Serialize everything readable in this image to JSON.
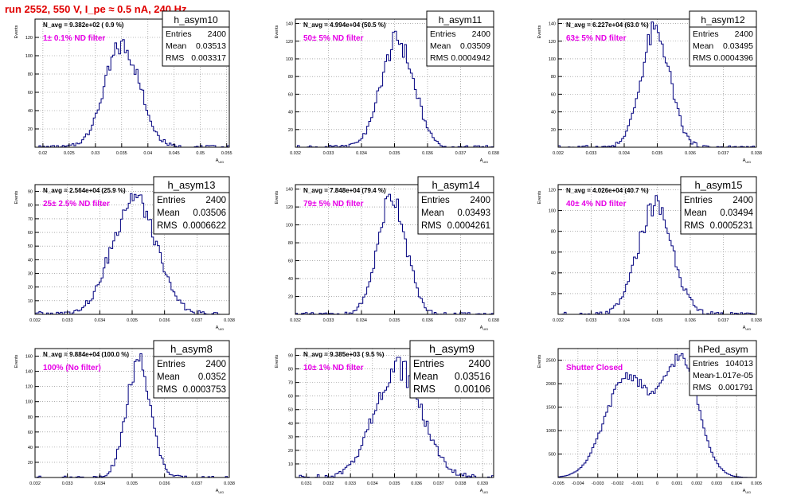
{
  "header": {
    "run_title": "run 2552,   550 V, I_pe ≈ 0.5 nA, 240 Hz"
  },
  "colors": {
    "histogram_line": "#00007f",
    "filter_label": "#e600e6",
    "title_text": "#e00000",
    "axes": "#000000",
    "grid": "#808080"
  },
  "stats_labels": {
    "entries": "Entries",
    "mean": "Mean",
    "rms": "RMS"
  },
  "axis_labels": {
    "x": "A_UID",
    "y": "Events"
  },
  "chart_data": [
    {
      "type": "bar",
      "name": "h_asym10",
      "navg_label": "N_avg = 9.382e+02 ( 0.9 %)",
      "filter_label": "1± 0.1% ND filter",
      "stats": {
        "entries": "2400",
        "mean": "0.03513",
        "rms": "0.003317"
      },
      "xlim": [
        0.0185,
        0.0555
      ],
      "ylim": [
        0,
        140
      ],
      "xticks": [
        0.02,
        0.025,
        0.03,
        0.035,
        0.04,
        0.045,
        0.05,
        0.055
      ],
      "xticklabels": [
        "0.02",
        "0.025",
        "0.03",
        "0.035",
        "0.04",
        "0.045",
        "0.05",
        "0.055"
      ],
      "yticks": [
        20,
        40,
        60,
        80,
        100,
        120
      ],
      "yticklabels": [
        "20",
        "40",
        "60",
        "80",
        "100",
        "120"
      ],
      "mu": 0.03513,
      "sigma": 0.003317,
      "peak": 112,
      "grid": true,
      "stats_box": "top-right",
      "stats_font": "small"
    },
    {
      "type": "bar",
      "name": "h_asym11",
      "navg_label": "N_avg = 4.994e+04 (50.5 %)",
      "filter_label": "50± 5% ND filter",
      "stats": {
        "entries": "2400",
        "mean": "0.03509",
        "rms": "0.0004942"
      },
      "xlim": [
        0.032,
        0.038
      ],
      "ylim": [
        0,
        145
      ],
      "xticks": [
        0.032,
        0.033,
        0.034,
        0.035,
        0.036,
        0.037,
        0.038
      ],
      "xticklabels": [
        "0.032",
        "0.033",
        "0.034",
        "0.035",
        "0.036",
        "0.037",
        "0.038"
      ],
      "yticks": [
        20,
        40,
        60,
        80,
        100,
        120,
        140
      ],
      "yticklabels": [
        "20",
        "40",
        "60",
        "80",
        "100",
        "120",
        "140"
      ],
      "mu": 0.03509,
      "sigma": 0.0004942,
      "peak": 120,
      "grid": true,
      "stats_box": "top-right",
      "stats_font": "small"
    },
    {
      "type": "bar",
      "name": "h_asym12",
      "navg_label": "N_avg = 6.227e+04 (63.0 %)",
      "filter_label": "63± 5% ND filter",
      "stats": {
        "entries": "2400",
        "mean": "0.03495",
        "rms": "0.0004396"
      },
      "xlim": [
        0.032,
        0.038
      ],
      "ylim": [
        0,
        145
      ],
      "xticks": [
        0.032,
        0.033,
        0.034,
        0.035,
        0.036,
        0.037,
        0.038
      ],
      "xticklabels": [
        "0.032",
        "0.033",
        "0.034",
        "0.035",
        "0.036",
        "0.037",
        "0.038"
      ],
      "yticks": [
        20,
        40,
        60,
        80,
        100,
        120,
        140
      ],
      "yticklabels": [
        "20",
        "40",
        "60",
        "80",
        "100",
        "120",
        "140"
      ],
      "mu": 0.03495,
      "sigma": 0.0004396,
      "peak": 130,
      "grid": true,
      "stats_box": "top-right",
      "stats_font": "small"
    },
    {
      "type": "bar",
      "name": "h_asym13",
      "navg_label": "N_avg = 2.564e+04 (25.9 %)",
      "filter_label": "25± 2.5% ND filter",
      "stats": {
        "entries": "2400",
        "mean": "0.03506",
        "rms": "0.0006622"
      },
      "xlim": [
        0.032,
        0.038
      ],
      "ylim": [
        0,
        95
      ],
      "xticks": [
        0.032,
        0.033,
        0.034,
        0.035,
        0.036,
        0.037,
        0.038
      ],
      "xticklabels": [
        "0.032",
        "0.033",
        "0.034",
        "0.035",
        "0.036",
        "0.037",
        "0.038"
      ],
      "yticks": [
        10,
        20,
        30,
        40,
        50,
        60,
        70,
        80,
        90
      ],
      "yticklabels": [
        "10",
        "20",
        "30",
        "40",
        "50",
        "60",
        "70",
        "80",
        "90"
      ],
      "mu": 0.03506,
      "sigma": 0.0006622,
      "peak": 86,
      "grid": true,
      "stats_box": "top-right",
      "stats_font": "large"
    },
    {
      "type": "bar",
      "name": "h_asym14",
      "navg_label": "N_avg = 7.848e+04 (79.4 %)",
      "filter_label": "79± 5% ND filter",
      "stats": {
        "entries": "2400",
        "mean": "0.03493",
        "rms": "0.0004261"
      },
      "xlim": [
        0.032,
        0.038
      ],
      "ylim": [
        0,
        145
      ],
      "xticks": [
        0.032,
        0.033,
        0.034,
        0.035,
        0.036,
        0.037,
        0.038
      ],
      "xticklabels": [
        "0.032",
        "0.033",
        "0.034",
        "0.035",
        "0.036",
        "0.037",
        "0.038"
      ],
      "yticks": [
        20,
        40,
        60,
        80,
        100,
        120,
        140
      ],
      "yticklabels": [
        "20",
        "40",
        "60",
        "80",
        "100",
        "120",
        "140"
      ],
      "mu": 0.03493,
      "sigma": 0.0004261,
      "peak": 132,
      "grid": true,
      "stats_box": "top-right",
      "stats_font": "large"
    },
    {
      "type": "bar",
      "name": "h_asym15",
      "navg_label": "N_avg = 4.026e+04 (40.7 %)",
      "filter_label": "40± 4% ND filter",
      "stats": {
        "entries": "2400",
        "mean": "0.03494",
        "rms": "0.0005231"
      },
      "xlim": [
        0.032,
        0.038
      ],
      "ylim": [
        0,
        125
      ],
      "xticks": [
        0.032,
        0.033,
        0.034,
        0.035,
        0.036,
        0.037,
        0.038
      ],
      "xticklabels": [
        "0.032",
        "0.033",
        "0.034",
        "0.035",
        "0.036",
        "0.037",
        "0.038"
      ],
      "yticks": [
        20,
        40,
        60,
        80,
        100,
        120
      ],
      "yticklabels": [
        "20",
        "40",
        "60",
        "80",
        "100",
        "120"
      ],
      "mu": 0.03494,
      "sigma": 0.0005231,
      "peak": 105,
      "grid": true,
      "stats_box": "top-right",
      "stats_font": "large"
    },
    {
      "type": "bar",
      "name": "h_asym8",
      "navg_label": "N_avg = 9.884e+04 (100.0 %)",
      "filter_label": "100% (No filter)",
      "stats": {
        "entries": "2400",
        "mean": "0.0352",
        "rms": "0.0003753"
      },
      "xlim": [
        0.032,
        0.038
      ],
      "ylim": [
        0,
        170
      ],
      "xticks": [
        0.032,
        0.033,
        0.034,
        0.035,
        0.036,
        0.037,
        0.038
      ],
      "xticklabels": [
        "0.032",
        "0.033",
        "0.034",
        "0.035",
        "0.036",
        "0.037",
        "0.038"
      ],
      "yticks": [
        20,
        40,
        60,
        80,
        100,
        120,
        140,
        160
      ],
      "yticklabels": [
        "20",
        "40",
        "60",
        "80",
        "100",
        "120",
        "140",
        "160"
      ],
      "mu": 0.0352,
      "sigma": 0.0003753,
      "peak": 150,
      "grid": true,
      "stats_box": "top-right",
      "stats_font": "large"
    },
    {
      "type": "bar",
      "name": "h_asym9",
      "navg_label": "N_avg = 9.385e+03 ( 9.5 %)",
      "filter_label": "10± 1% ND filter",
      "stats": {
        "entries": "2400",
        "mean": "0.03516",
        "rms": "0.00106"
      },
      "xlim": [
        0.0305,
        0.0395
      ],
      "ylim": [
        0,
        95
      ],
      "xticks": [
        0.031,
        0.032,
        0.033,
        0.034,
        0.035,
        0.036,
        0.037,
        0.038,
        0.039
      ],
      "xticklabels": [
        "0.031",
        "0.032",
        "0.033",
        "0.034",
        "0.035",
        "0.036",
        "0.037",
        "0.038",
        "0.039"
      ],
      "yticks": [
        10,
        20,
        30,
        40,
        50,
        60,
        70,
        80,
        90
      ],
      "yticklabels": [
        "10",
        "20",
        "30",
        "40",
        "50",
        "60",
        "70",
        "80",
        "90"
      ],
      "mu": 0.03516,
      "sigma": 0.00106,
      "peak": 82,
      "grid": true,
      "stats_box": "top-right",
      "stats_font": "xlarge"
    },
    {
      "type": "bar",
      "name": "hPed_asym",
      "navg_label": "",
      "filter_label": "Shutter Closed",
      "stats": {
        "entries": "104013",
        "mean": "-1.017e-05",
        "rms": "0.001791"
      },
      "xlim": [
        -0.005,
        0.005
      ],
      "ylim": [
        0,
        2750
      ],
      "xticks": [
        -0.005,
        -0.004,
        -0.003,
        -0.002,
        -0.001,
        0,
        0.001,
        0.002,
        0.003,
        0.004,
        0.005
      ],
      "xticklabels": [
        "-0.005",
        "-0.004",
        "-0.003",
        "-0.002",
        "-0.001",
        "0",
        "0.001",
        "0.002",
        "0.003",
        "0.004",
        "0.005"
      ],
      "yticks": [
        500,
        1000,
        1500,
        2000,
        2500
      ],
      "yticklabels": [
        "500",
        "1000",
        "1500",
        "2000",
        "2500"
      ],
      "double_peak": true,
      "peak_positions": [
        -0.0015,
        0.0012
      ],
      "peak_sigmas": [
        0.0011,
        0.0009
      ],
      "peak": 2450,
      "grid": true,
      "stats_box": "top-right",
      "stats_font": "small"
    }
  ]
}
